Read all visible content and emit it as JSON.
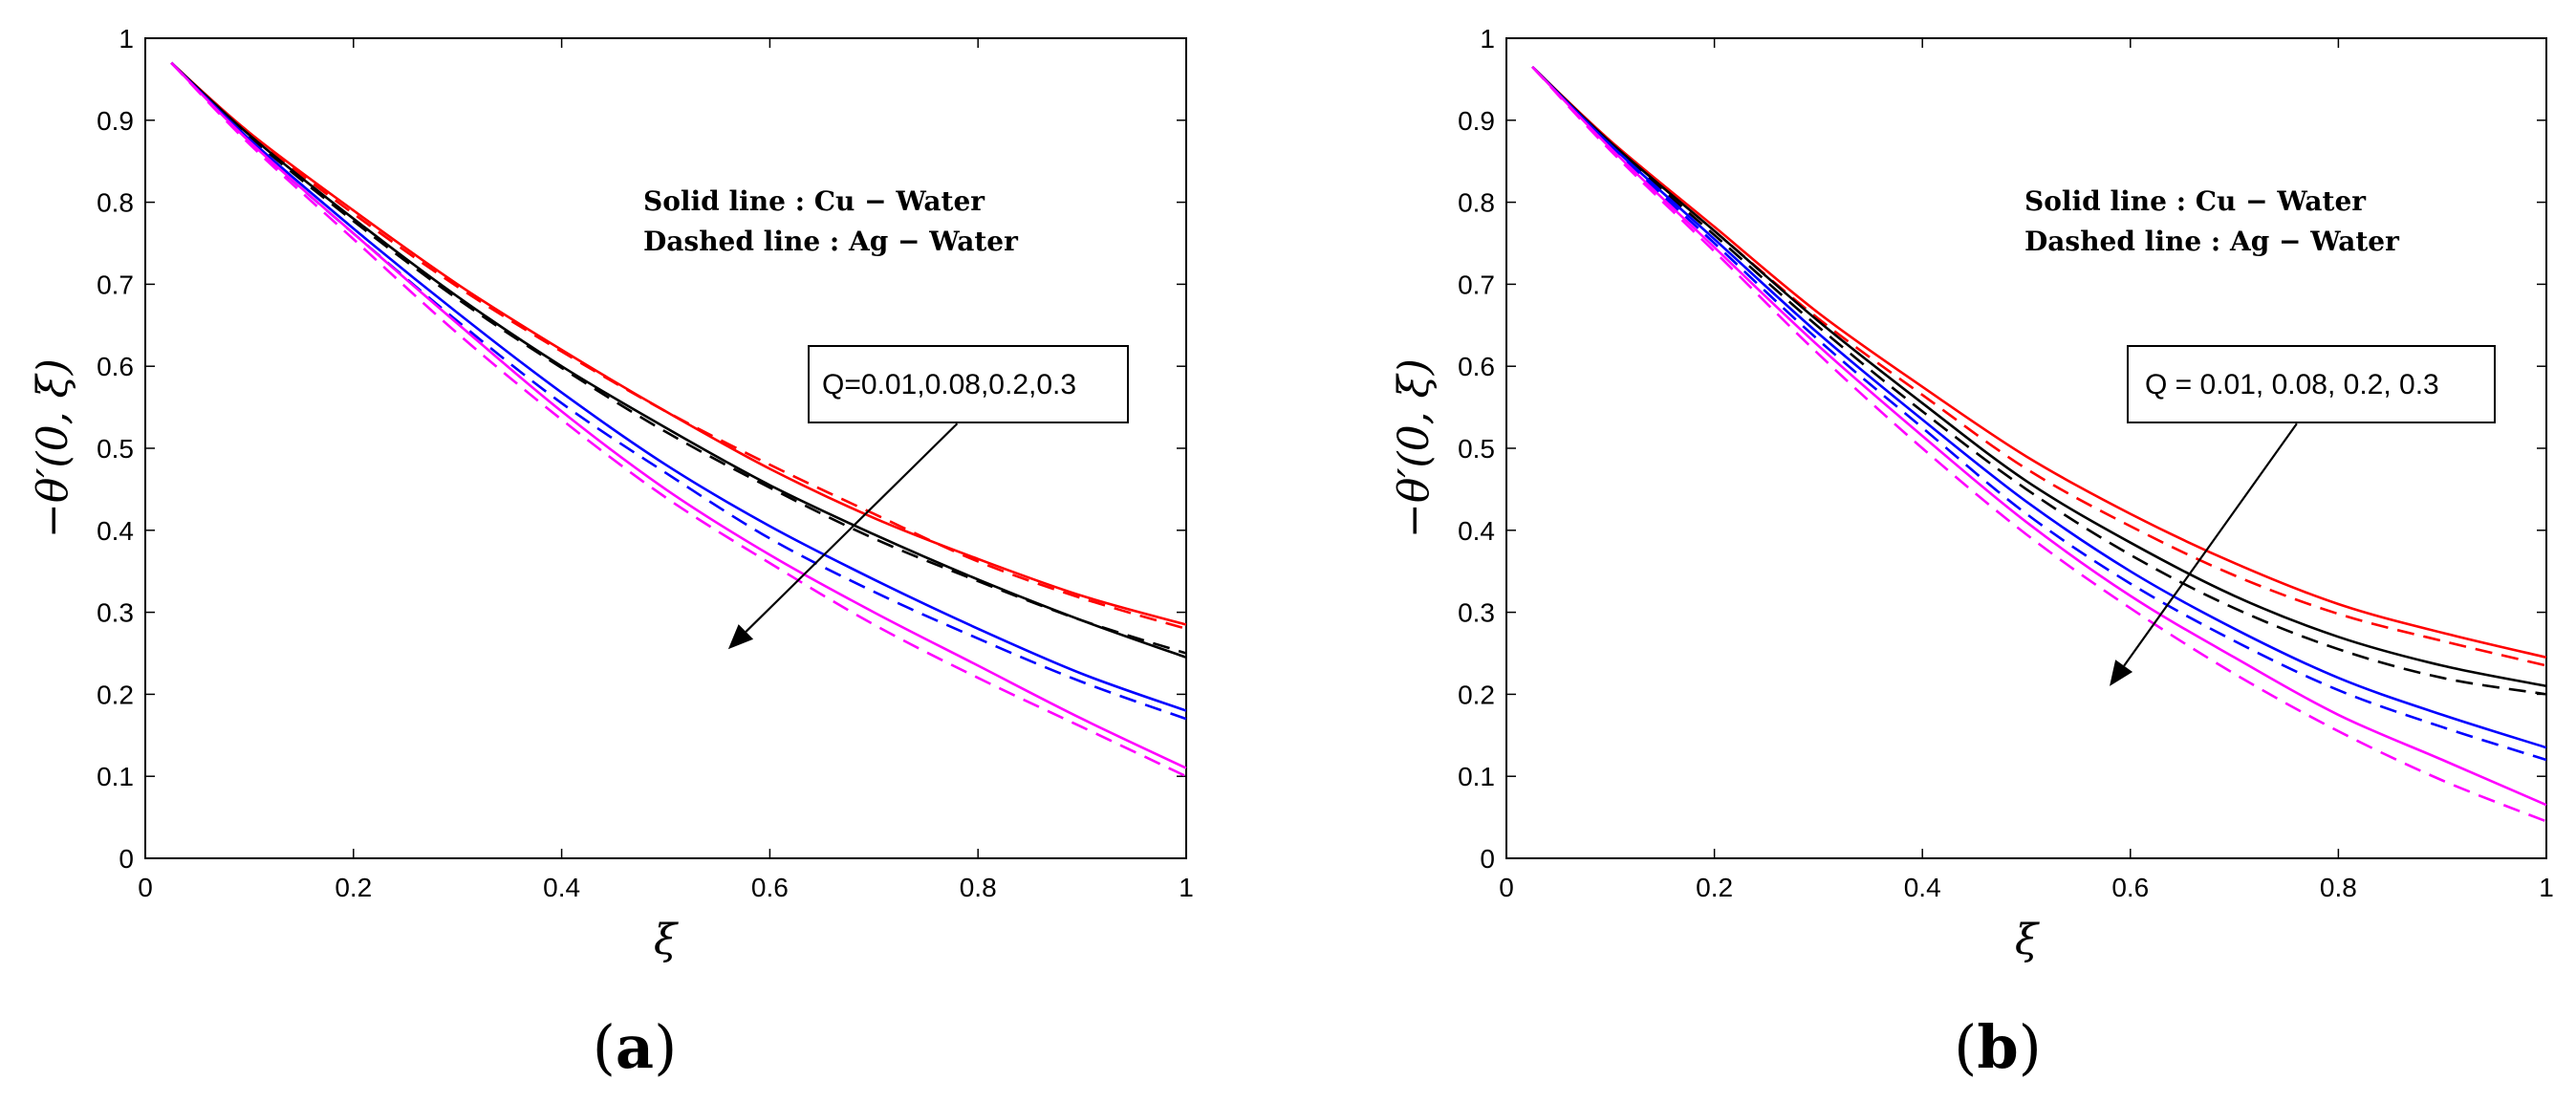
{
  "chart_data": [
    {
      "type": "line",
      "panel_label": "a",
      "xlabel": "ξ",
      "ylabel": "−θ′(0, ξ)",
      "xlim": [
        0,
        1
      ],
      "ylim": [
        0,
        1
      ],
      "xticks": [
        "0",
        "0.2",
        "0.4",
        "0.6",
        "0.8",
        "1"
      ],
      "yticks": [
        "0",
        "0.1",
        "0.2",
        "0.3",
        "0.4",
        "0.5",
        "0.6",
        "0.7",
        "0.8",
        "0.9",
        "1"
      ],
      "legend": [
        "Solid line : Cu − Water",
        "Dashed line : Ag − Water"
      ],
      "annotation": {
        "text": "Q=0.01,0.08,0.2,0.3",
        "arrow_from": [
          0.78,
          0.53
        ],
        "arrow_to": [
          0.56,
          0.255
        ]
      },
      "x": [
        0.025,
        0.1,
        0.2,
        0.3,
        0.4,
        0.5,
        0.6,
        0.7,
        0.8,
        0.9,
        1.0
      ],
      "series": [
        {
          "name": "Cu-Water Q=0.01",
          "color": "#ff0000",
          "style": "solid",
          "values": [
            0.97,
            0.885,
            0.79,
            0.7,
            0.62,
            0.545,
            0.475,
            0.415,
            0.365,
            0.32,
            0.285
          ]
        },
        {
          "name": "Ag-Water Q=0.01",
          "color": "#ff0000",
          "style": "dashed",
          "values": [
            0.97,
            0.883,
            0.786,
            0.697,
            0.618,
            0.545,
            0.48,
            0.42,
            0.362,
            0.317,
            0.28
          ]
        },
        {
          "name": "Cu-Water Q=0.08",
          "color": "#000000",
          "style": "solid",
          "values": [
            0.97,
            0.882,
            0.78,
            0.685,
            0.6,
            0.525,
            0.455,
            0.395,
            0.34,
            0.29,
            0.245
          ]
        },
        {
          "name": "Ag-Water Q=0.08",
          "color": "#000000",
          "style": "dashed",
          "values": [
            0.97,
            0.88,
            0.777,
            0.682,
            0.598,
            0.52,
            0.452,
            0.39,
            0.338,
            0.29,
            0.25
          ]
        },
        {
          "name": "Cu-Water Q=0.2",
          "color": "#0000ff",
          "style": "solid",
          "values": [
            0.97,
            0.877,
            0.768,
            0.665,
            0.568,
            0.48,
            0.405,
            0.34,
            0.28,
            0.225,
            0.18
          ]
        },
        {
          "name": "Ag-Water Q=0.2",
          "color": "#0000ff",
          "style": "dashed",
          "values": [
            0.97,
            0.874,
            0.762,
            0.655,
            0.555,
            0.47,
            0.39,
            0.325,
            0.268,
            0.215,
            0.17
          ]
        },
        {
          "name": "Cu-Water Q=0.3",
          "color": "#ff00ff",
          "style": "solid",
          "values": [
            0.97,
            0.874,
            0.762,
            0.652,
            0.545,
            0.45,
            0.37,
            0.3,
            0.235,
            0.17,
            0.11
          ]
        },
        {
          "name": "Ag-Water Q=0.3",
          "color": "#ff00ff",
          "style": "dashed",
          "values": [
            0.97,
            0.871,
            0.755,
            0.64,
            0.535,
            0.44,
            0.36,
            0.285,
            0.22,
            0.16,
            0.1
          ]
        }
      ]
    },
    {
      "type": "line",
      "panel_label": "b",
      "xlabel": "ξ",
      "ylabel": "−θ′(0, ξ)",
      "xlim": [
        0,
        1
      ],
      "ylim": [
        0,
        1
      ],
      "xticks": [
        "0",
        "0.2",
        "0.4",
        "0.6",
        "0.8",
        "1"
      ],
      "yticks": [
        "0",
        "0.1",
        "0.2",
        "0.3",
        "0.4",
        "0.5",
        "0.6",
        "0.7",
        "0.8",
        "0.9",
        "1"
      ],
      "legend": [
        "Solid line : Cu − Water",
        "Dashed line : Ag − Water"
      ],
      "annotation": {
        "text": "Q = 0.01, 0.08, 0.2, 0.3",
        "arrow_from": [
          0.76,
          0.53
        ],
        "arrow_to": [
          0.58,
          0.21
        ]
      },
      "x": [
        0.025,
        0.1,
        0.2,
        0.3,
        0.4,
        0.5,
        0.6,
        0.7,
        0.8,
        0.9,
        1.0
      ],
      "series": [
        {
          "name": "Cu-Water Q=0.01",
          "color": "#ff0000",
          "style": "solid",
          "values": [
            0.965,
            0.875,
            0.77,
            0.665,
            0.575,
            0.49,
            0.42,
            0.36,
            0.31,
            0.275,
            0.245
          ]
        },
        {
          "name": "Ag-Water Q=0.01",
          "color": "#ff0000",
          "style": "dashed",
          "values": [
            0.965,
            0.873,
            0.765,
            0.658,
            0.565,
            0.475,
            0.405,
            0.345,
            0.298,
            0.265,
            0.235
          ]
        },
        {
          "name": "Cu-Water Q=0.08",
          "color": "#000000",
          "style": "solid",
          "values": [
            0.965,
            0.873,
            0.765,
            0.655,
            0.555,
            0.46,
            0.385,
            0.32,
            0.27,
            0.235,
            0.21
          ]
        },
        {
          "name": "Ag-Water Q=0.08",
          "color": "#000000",
          "style": "dashed",
          "values": [
            0.965,
            0.871,
            0.76,
            0.648,
            0.545,
            0.45,
            0.37,
            0.305,
            0.255,
            0.22,
            0.2
          ]
        },
        {
          "name": "Cu-Water Q=0.2",
          "color": "#0000ff",
          "style": "solid",
          "values": [
            0.965,
            0.87,
            0.755,
            0.64,
            0.535,
            0.435,
            0.35,
            0.28,
            0.22,
            0.175,
            0.135
          ]
        },
        {
          "name": "Ag-Water Q=0.2",
          "color": "#0000ff",
          "style": "dashed",
          "values": [
            0.965,
            0.868,
            0.75,
            0.632,
            0.525,
            0.42,
            0.335,
            0.265,
            0.205,
            0.16,
            0.12
          ]
        },
        {
          "name": "Cu-Water Q=0.3",
          "color": "#ff00ff",
          "style": "solid",
          "values": [
            0.965,
            0.866,
            0.745,
            0.625,
            0.515,
            0.41,
            0.32,
            0.245,
            0.175,
            0.12,
            0.065
          ]
        },
        {
          "name": "Ag-Water Q=0.3",
          "color": "#ff00ff",
          "style": "dashed",
          "values": [
            0.965,
            0.863,
            0.74,
            0.615,
            0.5,
            0.395,
            0.305,
            0.225,
            0.155,
            0.095,
            0.045
          ]
        }
      ]
    }
  ]
}
